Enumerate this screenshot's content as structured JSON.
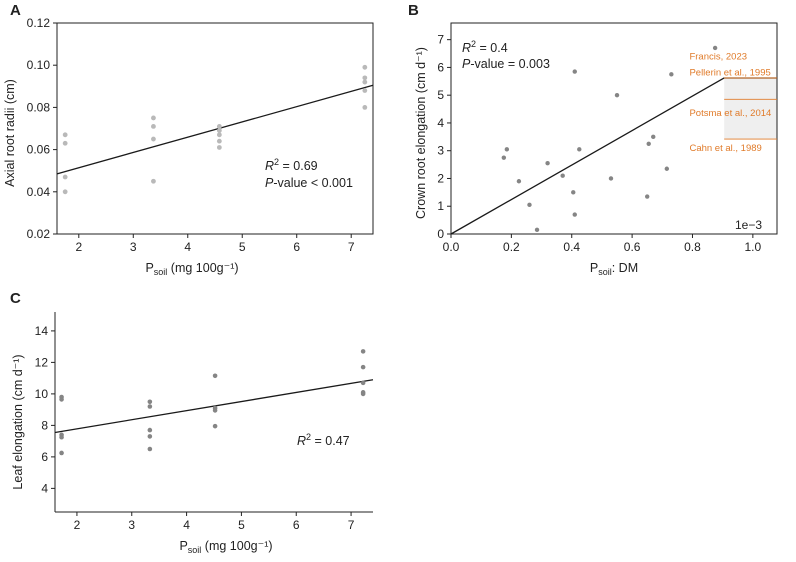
{
  "chart_data": [
    {
      "panel": "A",
      "type": "scatter",
      "title": "",
      "xlabel": {
        "main": "P",
        "sub": "soil",
        "rest": " (mg 100g⁻¹)"
      },
      "ylabel": "Axial root radii (cm)",
      "xlim": [
        1.6,
        7.4
      ],
      "ylim": [
        0.02,
        0.12
      ],
      "xticks": [
        2,
        3,
        4,
        5,
        6,
        7
      ],
      "yticks": [
        0.02,
        0.04,
        0.06,
        0.08,
        0.1,
        0.12
      ],
      "ytick_labels": [
        "0.02",
        "0.04",
        "0.06",
        "0.08",
        "0.10",
        "0.12"
      ],
      "points": [
        {
          "x": 1.75,
          "y": 0.067
        },
        {
          "x": 1.75,
          "y": 0.063
        },
        {
          "x": 1.75,
          "y": 0.047
        },
        {
          "x": 1.75,
          "y": 0.04
        },
        {
          "x": 3.37,
          "y": 0.075
        },
        {
          "x": 3.37,
          "y": 0.071
        },
        {
          "x": 3.37,
          "y": 0.065
        },
        {
          "x": 3.37,
          "y": 0.045
        },
        {
          "x": 4.58,
          "y": 0.071
        },
        {
          "x": 4.58,
          "y": 0.069
        },
        {
          "x": 4.58,
          "y": 0.067
        },
        {
          "x": 4.58,
          "y": 0.064
        },
        {
          "x": 4.58,
          "y": 0.061
        },
        {
          "x": 7.25,
          "y": 0.099
        },
        {
          "x": 7.25,
          "y": 0.094
        },
        {
          "x": 7.25,
          "y": 0.092
        },
        {
          "x": 7.25,
          "y": 0.088
        },
        {
          "x": 7.25,
          "y": 0.08
        }
      ],
      "fit_line": {
        "x": [
          1.6,
          7.4
        ],
        "y": [
          0.0485,
          0.0905
        ]
      },
      "annotations": [
        {
          "italic": "R",
          "sup": "2",
          "text": " = 0.69"
        },
        {
          "italic": "P",
          "text": "-value < 0.001"
        }
      ]
    },
    {
      "panel": "B",
      "type": "scatter",
      "title": "",
      "xlabel": {
        "main": "P",
        "sub": "soil",
        "rest": ": DM"
      },
      "ylabel": "Crown root elongation (cm d⁻¹)",
      "xlim": [
        0,
        1.08
      ],
      "ylim": [
        0,
        7.6
      ],
      "xticks": [
        0.0,
        0.2,
        0.4,
        0.6,
        0.8,
        1.0
      ],
      "xtick_labels": [
        "0.0",
        "0.2",
        "0.4",
        "0.6",
        "0.8",
        "1.0"
      ],
      "yticks": [
        0,
        1,
        2,
        3,
        4,
        5,
        6,
        7
      ],
      "offset_text": "1e−3",
      "points": [
        {
          "x": 0.175,
          "y": 2.75
        },
        {
          "x": 0.185,
          "y": 3.05
        },
        {
          "x": 0.225,
          "y": 1.9
        },
        {
          "x": 0.26,
          "y": 1.05
        },
        {
          "x": 0.285,
          "y": 0.15
        },
        {
          "x": 0.32,
          "y": 2.55
        },
        {
          "x": 0.37,
          "y": 2.1
        },
        {
          "x": 0.405,
          "y": 1.5
        },
        {
          "x": 0.41,
          "y": 0.7
        },
        {
          "x": 0.41,
          "y": 5.85
        },
        {
          "x": 0.425,
          "y": 3.05
        },
        {
          "x": 0.53,
          "y": 2.0
        },
        {
          "x": 0.55,
          "y": 5.0
        },
        {
          "x": 0.65,
          "y": 1.35
        },
        {
          "x": 0.655,
          "y": 3.25
        },
        {
          "x": 0.67,
          "y": 3.5
        },
        {
          "x": 0.715,
          "y": 2.35
        },
        {
          "x": 0.73,
          "y": 5.75
        },
        {
          "x": 0.875,
          "y": 6.7
        }
      ],
      "fit_line": {
        "x": [
          0,
          0.905
        ],
        "y": [
          0,
          5.62
        ]
      },
      "plateau": {
        "x": [
          0.905,
          1.08
        ],
        "y": 5.62
      },
      "shaded_band": {
        "x": [
          0.905,
          1.08
        ],
        "y": [
          3.42,
          5.62
        ]
      },
      "reference_lines": [
        {
          "label": "Francis, 2023",
          "y": 5.62,
          "label_y": 6.4
        },
        {
          "label": "Pellerin et al., 1995",
          "y": 5.62,
          "label_y": 5.82
        },
        {
          "label": "Potsma et al., 2014",
          "y": 4.85,
          "label_y": 4.35
        },
        {
          "label": "Cahn et al., 1989",
          "y": 3.42,
          "label_y": 3.1
        }
      ],
      "annotations": [
        {
          "italic": "R",
          "sup": "2",
          "text": " = 0.4"
        },
        {
          "italic": "P",
          "text": "-value = 0.003"
        }
      ]
    },
    {
      "panel": "C",
      "type": "scatter",
      "title": "",
      "xlabel": {
        "main": "P",
        "sub": "soil",
        "rest": " (mg 100g⁻¹)"
      },
      "ylabel": "Leaf elongation (cm d⁻¹)",
      "xlim": [
        1.6,
        7.4
      ],
      "ylim": [
        2.5,
        15.2
      ],
      "xticks": [
        2,
        3,
        4,
        5,
        6,
        7
      ],
      "yticks": [
        4,
        6,
        8,
        10,
        12,
        14
      ],
      "points": [
        {
          "x": 1.72,
          "y": 9.8
        },
        {
          "x": 1.72,
          "y": 9.65
        },
        {
          "x": 1.72,
          "y": 7.4
        },
        {
          "x": 1.72,
          "y": 7.25
        },
        {
          "x": 1.72,
          "y": 6.25
        },
        {
          "x": 3.33,
          "y": 9.5
        },
        {
          "x": 3.33,
          "y": 9.2
        },
        {
          "x": 3.33,
          "y": 7.7
        },
        {
          "x": 3.33,
          "y": 7.3
        },
        {
          "x": 3.33,
          "y": 6.5
        },
        {
          "x": 4.52,
          "y": 11.15
        },
        {
          "x": 4.52,
          "y": 9.1
        },
        {
          "x": 4.52,
          "y": 8.95
        },
        {
          "x": 4.52,
          "y": 7.95
        },
        {
          "x": 7.22,
          "y": 12.7
        },
        {
          "x": 7.22,
          "y": 11.7
        },
        {
          "x": 7.22,
          "y": 10.7
        },
        {
          "x": 7.22,
          "y": 10.1
        },
        {
          "x": 7.22,
          "y": 10.0
        }
      ],
      "fit_line": {
        "x": [
          1.6,
          7.4
        ],
        "y": [
          7.55,
          10.9
        ]
      },
      "annotations": [
        {
          "italic": "R",
          "sup": "2",
          "text": " = 0.47"
        }
      ]
    }
  ],
  "colors": {
    "axes": "#222222",
    "fit_line": "#1a1a1a",
    "point_light": "#b9b9b9",
    "point_dark": "#858585",
    "reference": "#e07b2a",
    "band": "#efefef"
  }
}
